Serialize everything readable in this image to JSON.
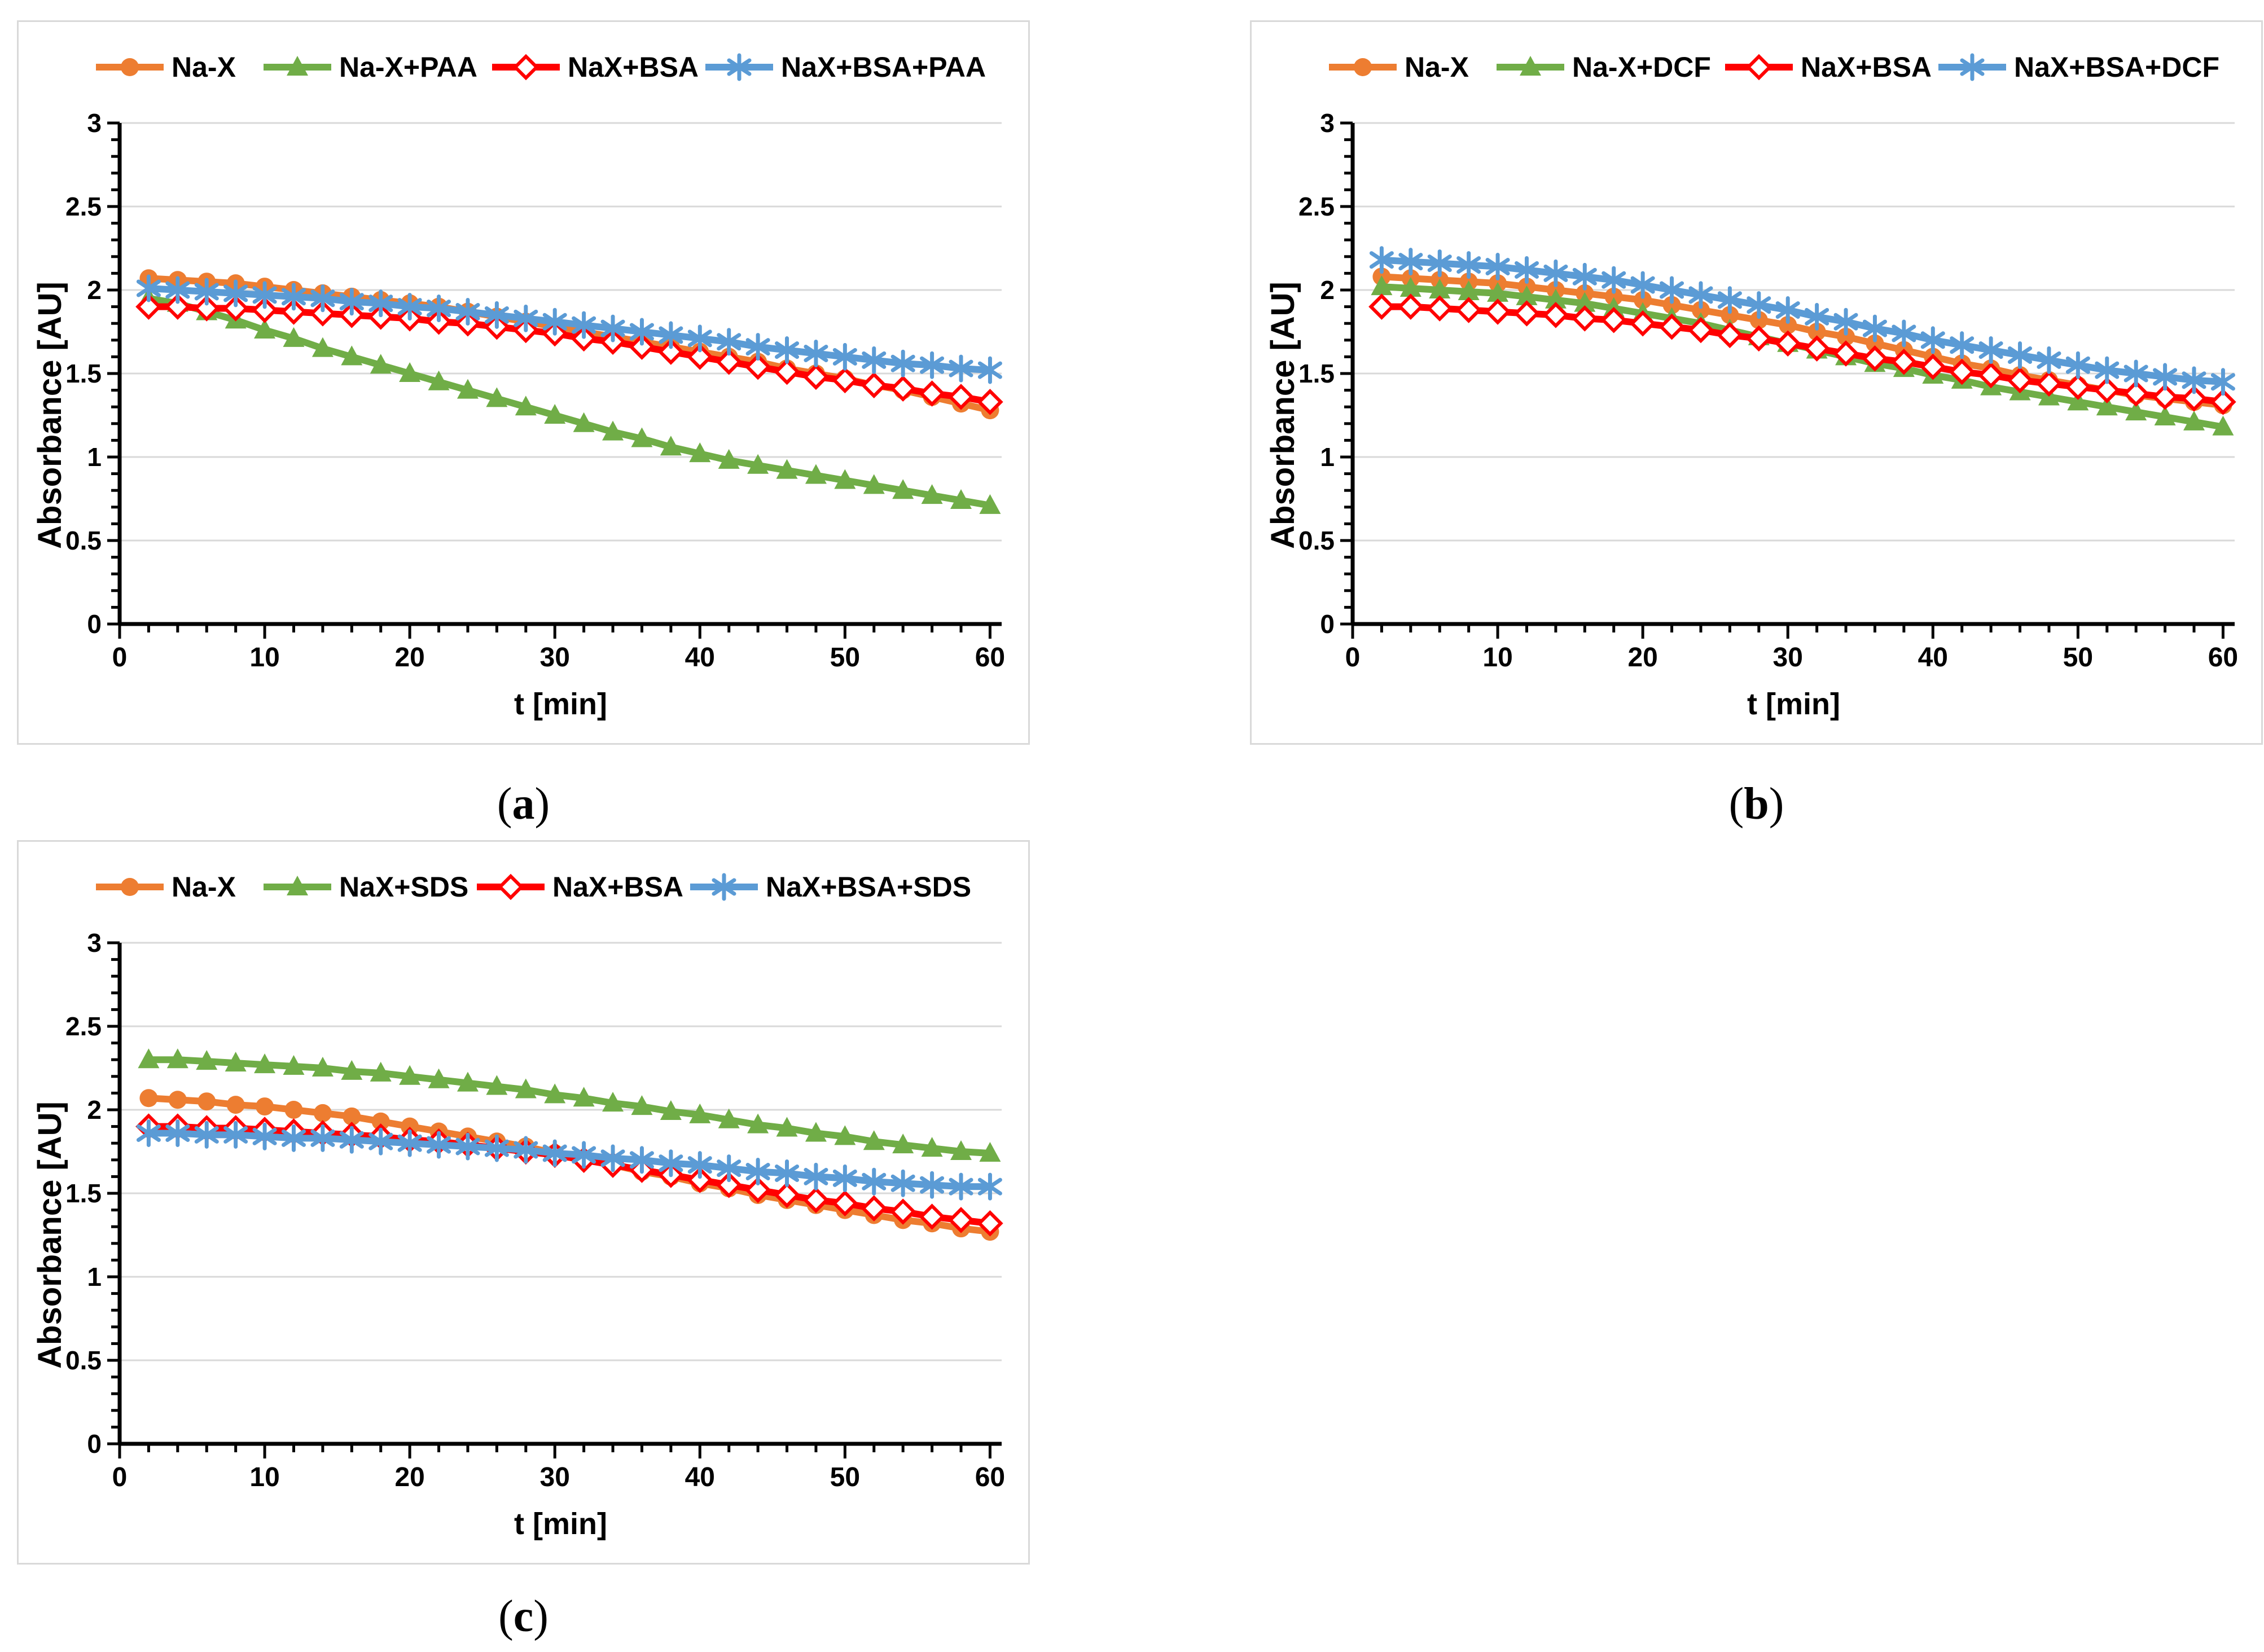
{
  "figure": {
    "caption_prefix": "(",
    "caption_suffix": ")",
    "panels": [
      {
        "id": "a",
        "caption_letter": "a"
      },
      {
        "id": "b",
        "caption_letter": "b"
      },
      {
        "id": "c",
        "caption_letter": "c"
      }
    ]
  },
  "colors": {
    "orange": "#ED7D31",
    "green": "#70AD47",
    "red": "#FF0000",
    "blue": "#5B9BD5",
    "grid": "#D9D9D9",
    "axis": "#000000",
    "panel_border": "#D9D9D9"
  },
  "chart_data": [
    {
      "type": "line",
      "panel": "a",
      "title": "",
      "xlabel": "t [min]",
      "ylabel": "Absorbance [AU]",
      "xlim": [
        0,
        60
      ],
      "ylim": [
        0,
        3
      ],
      "xticks": [
        0,
        10,
        20,
        30,
        40,
        50,
        60
      ],
      "yticks": [
        0,
        0.5,
        1,
        1.5,
        2,
        2.5,
        3
      ],
      "x_minor_step": 2,
      "y_minor_step": 0.1,
      "grid": "horizontal",
      "legend_position": "top",
      "x": [
        2,
        4,
        6,
        8,
        10,
        12,
        14,
        16,
        18,
        20,
        22,
        24,
        26,
        28,
        30,
        32,
        34,
        36,
        38,
        40,
        42,
        44,
        46,
        48,
        50,
        52,
        54,
        56,
        58,
        60
      ],
      "series": [
        {
          "name": "Na-X",
          "color": "#ED7D31",
          "marker": "circle",
          "values": [
            2.07,
            2.06,
            2.05,
            2.04,
            2.02,
            2.0,
            1.98,
            1.96,
            1.94,
            1.92,
            1.9,
            1.87,
            1.84,
            1.81,
            1.78,
            1.75,
            1.72,
            1.69,
            1.66,
            1.63,
            1.6,
            1.57,
            1.53,
            1.5,
            1.47,
            1.43,
            1.4,
            1.36,
            1.32,
            1.28
          ]
        },
        {
          "name": "Na-X+PAA",
          "color": "#70AD47",
          "marker": "triangle",
          "values": [
            1.95,
            1.92,
            1.87,
            1.82,
            1.76,
            1.71,
            1.65,
            1.6,
            1.55,
            1.5,
            1.45,
            1.4,
            1.35,
            1.3,
            1.25,
            1.2,
            1.15,
            1.11,
            1.06,
            1.02,
            0.98,
            0.95,
            0.92,
            0.89,
            0.86,
            0.83,
            0.8,
            0.77,
            0.74,
            0.71
          ]
        },
        {
          "name": "NaX+BSA",
          "color": "#FF0000",
          "marker": "diamond-open",
          "values": [
            1.9,
            1.9,
            1.89,
            1.89,
            1.88,
            1.87,
            1.86,
            1.85,
            1.84,
            1.83,
            1.81,
            1.8,
            1.78,
            1.76,
            1.74,
            1.71,
            1.69,
            1.66,
            1.63,
            1.6,
            1.57,
            1.54,
            1.51,
            1.48,
            1.46,
            1.43,
            1.41,
            1.38,
            1.36,
            1.33
          ]
        },
        {
          "name": "NaX+BSA+PAA",
          "color": "#5B9BD5",
          "marker": "asterisk",
          "values": [
            2.01,
            2.0,
            1.99,
            1.98,
            1.97,
            1.96,
            1.95,
            1.93,
            1.92,
            1.9,
            1.89,
            1.87,
            1.85,
            1.83,
            1.81,
            1.79,
            1.77,
            1.75,
            1.73,
            1.71,
            1.69,
            1.66,
            1.64,
            1.62,
            1.6,
            1.58,
            1.56,
            1.55,
            1.53,
            1.52
          ]
        }
      ]
    },
    {
      "type": "line",
      "panel": "b",
      "title": "",
      "xlabel": "t [min]",
      "ylabel": "Absorbance [AU]",
      "xlim": [
        0,
        60
      ],
      "ylim": [
        0,
        3
      ],
      "xticks": [
        0,
        10,
        20,
        30,
        40,
        50,
        60
      ],
      "yticks": [
        0,
        0.5,
        1,
        1.5,
        2,
        2.5,
        3
      ],
      "x_minor_step": 2,
      "y_minor_step": 0.1,
      "grid": "horizontal",
      "legend_position": "top",
      "x": [
        2,
        4,
        6,
        8,
        10,
        12,
        14,
        16,
        18,
        20,
        22,
        24,
        26,
        28,
        30,
        32,
        34,
        36,
        38,
        40,
        42,
        44,
        46,
        48,
        50,
        52,
        54,
        56,
        58,
        60
      ],
      "series": [
        {
          "name": "Na-X",
          "color": "#ED7D31",
          "marker": "circle",
          "values": [
            2.08,
            2.07,
            2.06,
            2.05,
            2.04,
            2.02,
            2.0,
            1.98,
            1.96,
            1.94,
            1.91,
            1.88,
            1.85,
            1.82,
            1.79,
            1.75,
            1.72,
            1.68,
            1.64,
            1.6,
            1.56,
            1.53,
            1.49,
            1.46,
            1.43,
            1.4,
            1.37,
            1.35,
            1.33,
            1.31
          ]
        },
        {
          "name": "Na-X+DCF",
          "color": "#70AD47",
          "marker": "triangle",
          "values": [
            2.02,
            2.01,
            2.0,
            1.99,
            1.98,
            1.96,
            1.94,
            1.92,
            1.89,
            1.86,
            1.83,
            1.8,
            1.76,
            1.72,
            1.68,
            1.64,
            1.6,
            1.56,
            1.53,
            1.49,
            1.46,
            1.42,
            1.39,
            1.36,
            1.33,
            1.3,
            1.27,
            1.24,
            1.21,
            1.18
          ]
        },
        {
          "name": "NaX+BSA",
          "color": "#FF0000",
          "marker": "diamond-open",
          "values": [
            1.9,
            1.9,
            1.89,
            1.88,
            1.87,
            1.86,
            1.85,
            1.83,
            1.82,
            1.8,
            1.78,
            1.76,
            1.73,
            1.71,
            1.68,
            1.65,
            1.62,
            1.59,
            1.57,
            1.54,
            1.51,
            1.49,
            1.46,
            1.44,
            1.42,
            1.4,
            1.38,
            1.36,
            1.35,
            1.33
          ]
        },
        {
          "name": "NaX+BSA+DCF",
          "color": "#5B9BD5",
          "marker": "asterisk",
          "values": [
            2.18,
            2.17,
            2.16,
            2.15,
            2.14,
            2.12,
            2.1,
            2.08,
            2.06,
            2.03,
            2.0,
            1.97,
            1.94,
            1.91,
            1.88,
            1.84,
            1.81,
            1.77,
            1.74,
            1.7,
            1.67,
            1.64,
            1.61,
            1.58,
            1.55,
            1.52,
            1.5,
            1.48,
            1.46,
            1.45
          ]
        }
      ]
    },
    {
      "type": "line",
      "panel": "c",
      "title": "",
      "xlabel": "t [min]",
      "ylabel": "Absorbance [AU]",
      "xlim": [
        0,
        60
      ],
      "ylim": [
        0,
        3
      ],
      "xticks": [
        0,
        10,
        20,
        30,
        40,
        50,
        60
      ],
      "yticks": [
        0,
        0.5,
        1,
        1.5,
        2,
        2.5,
        3
      ],
      "x_minor_step": 2,
      "y_minor_step": 0.1,
      "grid": "horizontal",
      "legend_position": "top",
      "x": [
        2,
        4,
        6,
        8,
        10,
        12,
        14,
        16,
        18,
        20,
        22,
        24,
        26,
        28,
        30,
        32,
        34,
        36,
        38,
        40,
        42,
        44,
        46,
        48,
        50,
        52,
        54,
        56,
        58,
        60
      ],
      "series": [
        {
          "name": "Na-X",
          "color": "#ED7D31",
          "marker": "circle",
          "values": [
            2.07,
            2.06,
            2.05,
            2.03,
            2.02,
            2.0,
            1.98,
            1.96,
            1.93,
            1.9,
            1.87,
            1.84,
            1.81,
            1.78,
            1.74,
            1.71,
            1.67,
            1.63,
            1.6,
            1.56,
            1.53,
            1.49,
            1.46,
            1.43,
            1.4,
            1.37,
            1.34,
            1.32,
            1.29,
            1.27
          ]
        },
        {
          "name": "NaX+SDS",
          "color": "#70AD47",
          "marker": "triangle",
          "values": [
            2.3,
            2.3,
            2.29,
            2.28,
            2.27,
            2.26,
            2.25,
            2.23,
            2.22,
            2.2,
            2.18,
            2.16,
            2.14,
            2.12,
            2.09,
            2.07,
            2.04,
            2.02,
            1.99,
            1.97,
            1.94,
            1.91,
            1.89,
            1.86,
            1.84,
            1.81,
            1.79,
            1.77,
            1.75,
            1.74
          ]
        },
        {
          "name": "NaX+BSA",
          "color": "#FF0000",
          "marker": "diamond-open",
          "values": [
            1.9,
            1.9,
            1.89,
            1.89,
            1.88,
            1.87,
            1.86,
            1.85,
            1.84,
            1.82,
            1.81,
            1.79,
            1.77,
            1.75,
            1.73,
            1.7,
            1.67,
            1.64,
            1.61,
            1.58,
            1.55,
            1.52,
            1.49,
            1.46,
            1.44,
            1.41,
            1.39,
            1.36,
            1.34,
            1.32
          ]
        },
        {
          "name": "NaX+BSA+SDS",
          "color": "#5B9BD5",
          "marker": "asterisk",
          "values": [
            1.86,
            1.86,
            1.85,
            1.85,
            1.84,
            1.83,
            1.83,
            1.82,
            1.81,
            1.8,
            1.79,
            1.78,
            1.77,
            1.76,
            1.74,
            1.73,
            1.71,
            1.7,
            1.68,
            1.67,
            1.65,
            1.63,
            1.62,
            1.6,
            1.59,
            1.57,
            1.56,
            1.55,
            1.54,
            1.54
          ]
        }
      ]
    }
  ]
}
